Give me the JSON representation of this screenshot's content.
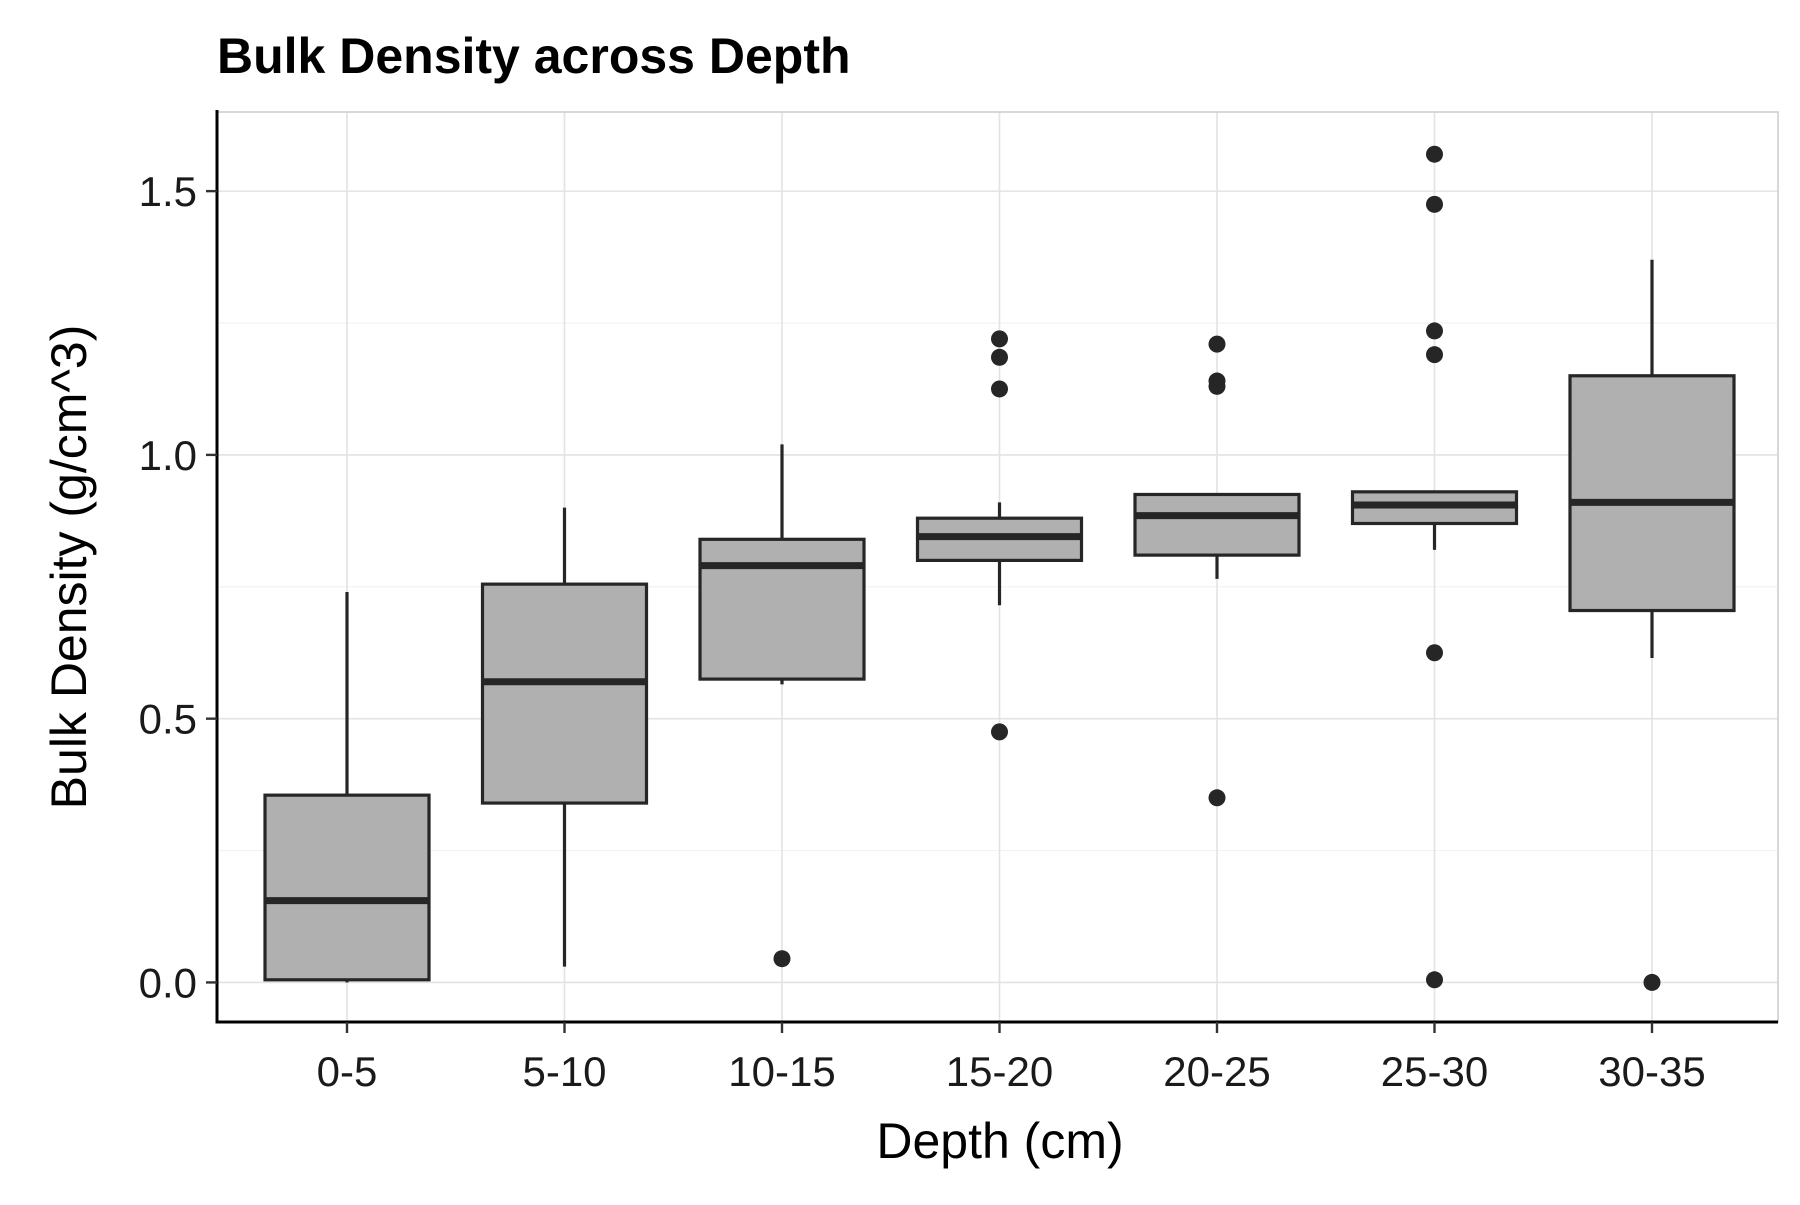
{
  "chart_data": {
    "type": "boxplot",
    "title": "Bulk Density across Depth",
    "xlabel": "Depth (cm)",
    "ylabel": "Bulk Density (g/cm^3)",
    "ylim": [
      -0.075,
      1.65
    ],
    "yticks": [
      0.0,
      0.5,
      1.0,
      1.5
    ],
    "ytick_labels": [
      "0.0",
      "0.5",
      "1.0",
      "1.5"
    ],
    "grid": true,
    "legend": "none",
    "colors": {
      "box_fill": "#b0b0b0",
      "box_stroke": "#262626"
    },
    "categories": [
      "0-5",
      "5-10",
      "10-15",
      "15-20",
      "20-25",
      "25-30",
      "30-35"
    ],
    "boxes": [
      {
        "category": "0-5",
        "whisker_low": 0.0,
        "q1": 0.005,
        "median": 0.155,
        "q3": 0.355,
        "whisker_high": 0.74,
        "outliers": []
      },
      {
        "category": "5-10",
        "whisker_low": 0.03,
        "q1": 0.34,
        "median": 0.57,
        "q3": 0.755,
        "whisker_high": 0.9,
        "outliers": []
      },
      {
        "category": "10-15",
        "whisker_low": 0.565,
        "q1": 0.575,
        "median": 0.79,
        "q3": 0.84,
        "whisker_high": 1.02,
        "outliers": [
          0.045
        ]
      },
      {
        "category": "15-20",
        "whisker_low": 0.715,
        "q1": 0.8,
        "median": 0.845,
        "q3": 0.88,
        "whisker_high": 0.91,
        "outliers": [
          1.22,
          1.185,
          1.125,
          0.475
        ]
      },
      {
        "category": "20-25",
        "whisker_low": 0.765,
        "q1": 0.81,
        "median": 0.885,
        "q3": 0.925,
        "whisker_high": 0.925,
        "outliers": [
          1.21,
          1.14,
          1.13,
          0.35
        ]
      },
      {
        "category": "25-30",
        "whisker_low": 0.82,
        "q1": 0.87,
        "median": 0.905,
        "q3": 0.93,
        "whisker_high": 0.93,
        "outliers": [
          1.57,
          1.475,
          1.235,
          1.19,
          0.625,
          0.005
        ]
      },
      {
        "category": "30-35",
        "whisker_low": 0.615,
        "q1": 0.705,
        "median": 0.91,
        "q3": 1.15,
        "whisker_high": 1.37,
        "outliers": [
          0.0
        ]
      }
    ]
  }
}
